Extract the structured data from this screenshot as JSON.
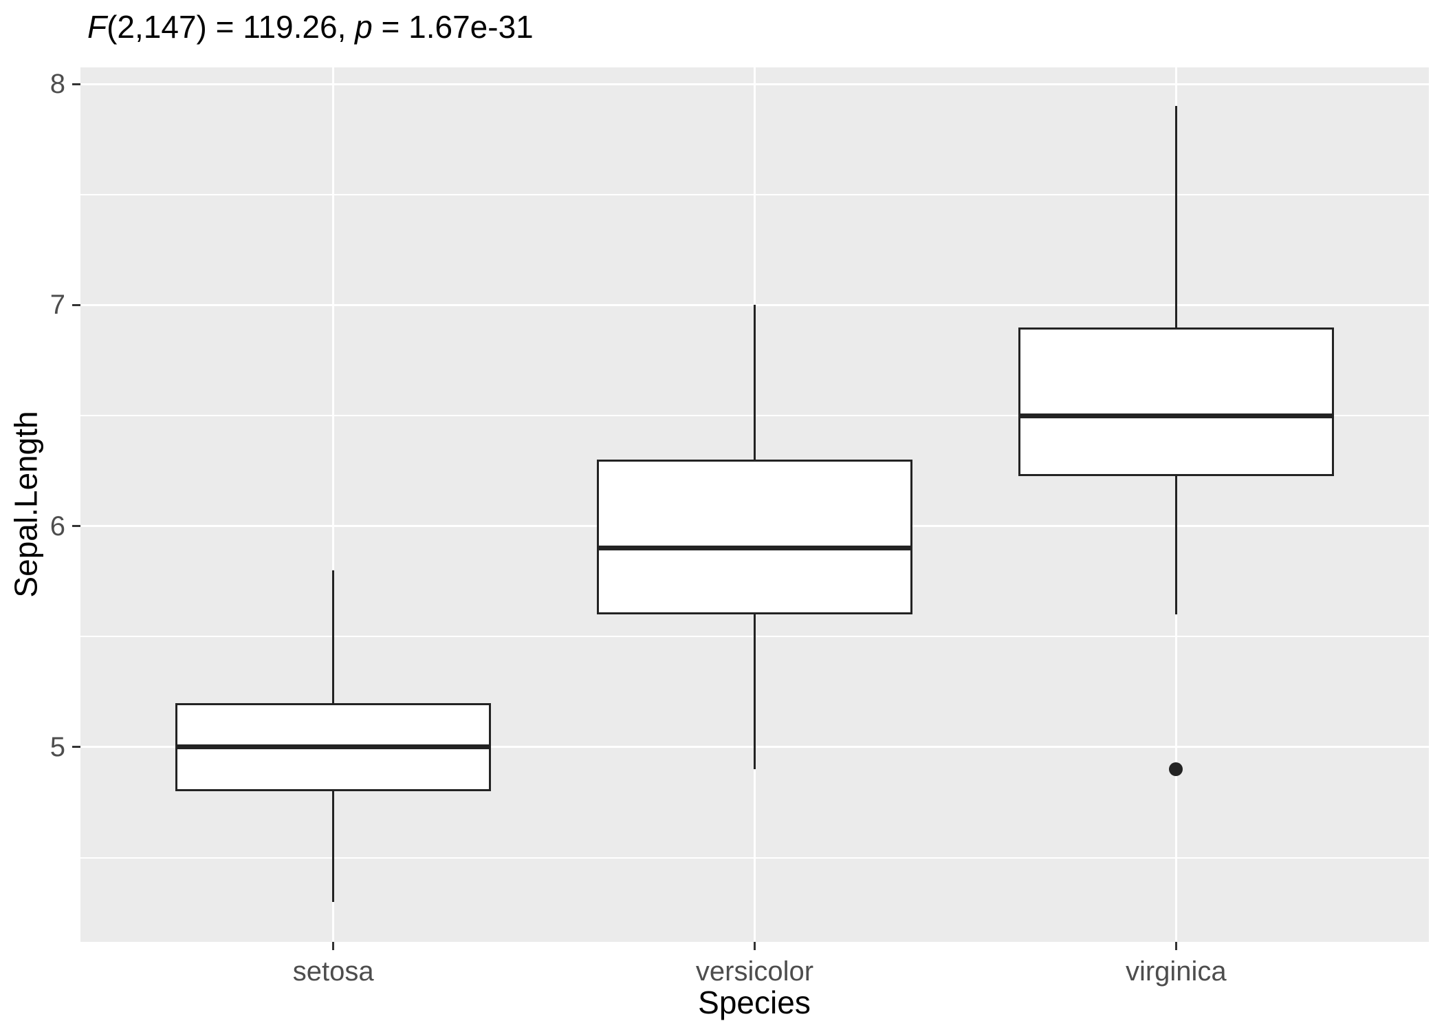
{
  "title": {
    "full": "F(2,147) = 119.26, p = 1.67e-31",
    "parts": [
      {
        "text": "F",
        "italic": true
      },
      {
        "text": "(2,147) = 119.26, ",
        "italic": false
      },
      {
        "text": "p",
        "italic": true
      },
      {
        "text": " = 1.67e-31",
        "italic": false
      }
    ]
  },
  "chart_data": {
    "type": "boxplot",
    "title": "F(2,147) = 119.26, p = 1.67e-31",
    "xlabel": "Species",
    "ylabel": "Sepal.Length",
    "categories": [
      "setosa",
      "versicolor",
      "virginica"
    ],
    "y_ticks": [
      5,
      6,
      7,
      8
    ],
    "ylim": [
      4.119,
      8.075
    ],
    "grid": {
      "horizontal_major": [
        5,
        6,
        7,
        8
      ],
      "horizontal_minor": [
        4.5,
        5.5,
        6.5,
        7.5
      ],
      "vertical_major_at_categories": true,
      "legend": "none"
    },
    "series": [
      {
        "name": "setosa",
        "whisker_low": 4.3,
        "q1": 4.8,
        "median": 5.0,
        "q3": 5.2,
        "whisker_high": 5.8,
        "outliers": []
      },
      {
        "name": "versicolor",
        "whisker_low": 4.9,
        "q1": 5.6,
        "median": 5.9,
        "q3": 6.3,
        "whisker_high": 7.0,
        "outliers": []
      },
      {
        "name": "virginica",
        "whisker_low": 5.6,
        "q1": 6.225,
        "median": 6.5,
        "q3": 6.9,
        "whisker_high": 7.9,
        "outliers": [
          4.9
        ]
      }
    ]
  },
  "colors": {
    "panel_bg": "#EBEBEB",
    "grid": "#FFFFFF",
    "box_stroke": "#232323",
    "box_fill": "#FFFFFF",
    "tick_label": "#4D4D4D",
    "axis_title": "#000000",
    "tick_mark": "#333333"
  }
}
